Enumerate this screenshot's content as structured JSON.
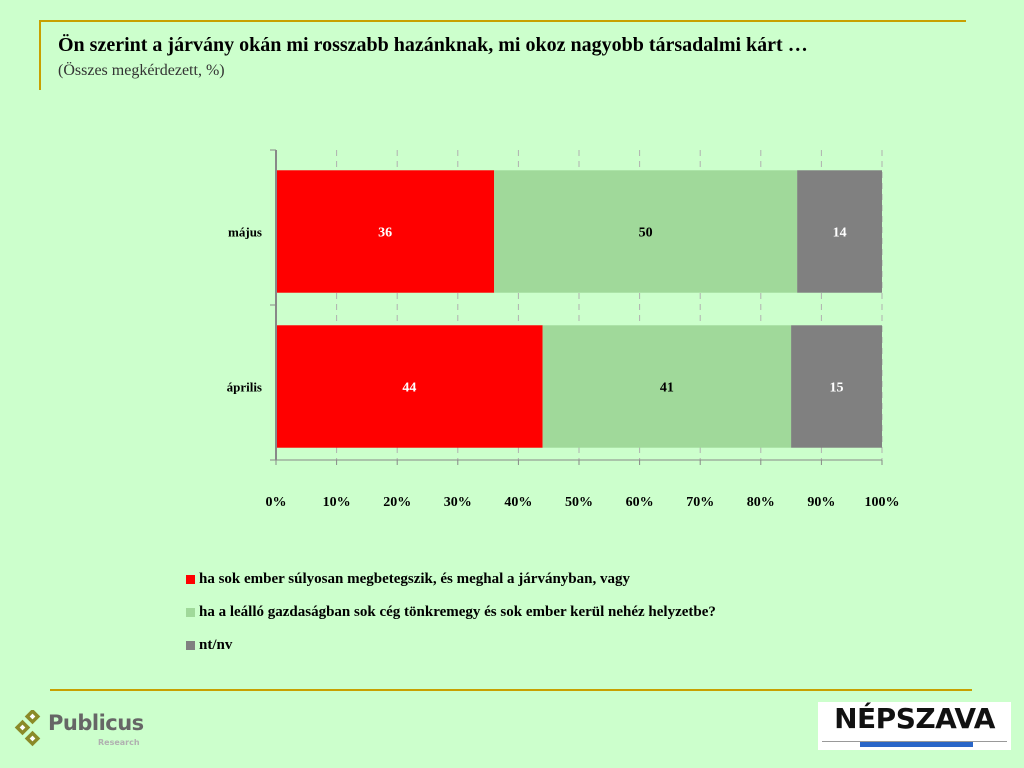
{
  "header": {
    "title": "Ön szerint a járvány okán mi rosszabb hazánknak, mi okoz nagyobb társadalmi kárt …",
    "subtitle": "(Összes megkérdezett, %)"
  },
  "chart_data": {
    "type": "bar",
    "orientation": "horizontal",
    "stacked": "percent",
    "categories": [
      "május",
      "április"
    ],
    "series": [
      {
        "name": "ha sok ember súlyosan megbetegszik, és meghal a járványban, vagy",
        "color": "#ff0000",
        "label_color": "#ffffff",
        "values": [
          36,
          44
        ]
      },
      {
        "name": "ha a leálló gazdaságban sok cég tönkremegy és sok ember kerül nehéz helyzetbe?",
        "color": "#a0d99a",
        "label_color": "#000000",
        "values": [
          50,
          41
        ]
      },
      {
        "name": "nt/nv",
        "color": "#808080",
        "label_color": "#ffffff",
        "values": [
          14,
          15
        ]
      }
    ],
    "xlim": [
      0,
      100
    ],
    "xticks": [
      "0%",
      "10%",
      "20%",
      "30%",
      "40%",
      "50%",
      "60%",
      "70%",
      "80%",
      "90%",
      "100%"
    ],
    "grid": "vertical-dashed",
    "legend_position": "bottom",
    "title": "",
    "xlabel": "",
    "ylabel": ""
  },
  "logos": {
    "left": {
      "name": "Publicus",
      "sub": "Research",
      "diamond_color": "#8a8a28"
    },
    "right": {
      "name": "NÉPSZAVA",
      "strip_color": "#2a66c8"
    }
  },
  "colors": {
    "background": "#ccffcc",
    "accent_line": "#c8a000"
  }
}
